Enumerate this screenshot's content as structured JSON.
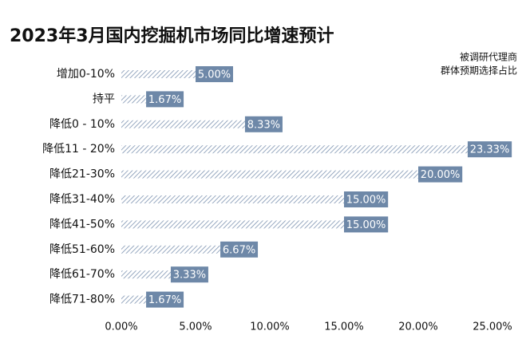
{
  "chart_data": {
    "type": "hbar",
    "title": "2023年3月国内挖掘机市场同比增速预计",
    "subtitle": [
      "被调研代理商",
      "群体预期选择占比"
    ],
    "categories": [
      "增加0-10%",
      "持平",
      "降低0 - 10%",
      "降低11 - 20%",
      "降低21-30%",
      "降低31-40%",
      "降低41-50%",
      "降低51-60%",
      "降低61-70%",
      "降低71-80%"
    ],
    "values": [
      5.0,
      1.67,
      8.33,
      23.33,
      20.0,
      15.0,
      15.0,
      6.67,
      3.33,
      1.67
    ],
    "value_labels": [
      "5.00%",
      "1.67%",
      "8.33%",
      "23.33%",
      "20.00%",
      "15.00%",
      "15.00%",
      "6.67%",
      "3.33%",
      "1.67%"
    ],
    "color": "#6e88a8",
    "xlim": [
      0,
      25
    ],
    "xticks": [
      {
        "value": 0,
        "label": "0.00%"
      },
      {
        "value": 5,
        "label": "5.00%"
      },
      {
        "value": 10,
        "label": "10.00%"
      },
      {
        "value": 15,
        "label": "15.00%"
      },
      {
        "value": 20,
        "label": "20.00%"
      },
      {
        "value": 25,
        "label": "25.00%"
      }
    ]
  }
}
